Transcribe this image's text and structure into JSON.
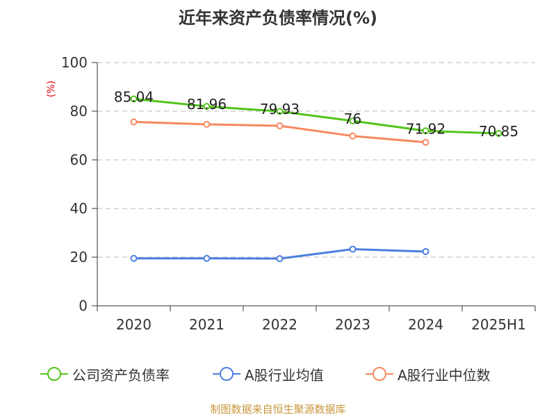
{
  "chart_data": {
    "type": "line",
    "title": "近年来资产负债率情况(%)",
    "unit_label": "(%)",
    "categories": [
      "2020",
      "2021",
      "2022",
      "2023",
      "2024",
      "2025H1"
    ],
    "ylim": [
      0,
      100
    ],
    "yticks": [
      "0",
      "20",
      "40",
      "60",
      "80",
      "100"
    ],
    "grid": true,
    "legend_position": "bottom",
    "series": [
      {
        "name": "公司资产负债率",
        "color": "#52c41a",
        "values": [
          85.04,
          81.96,
          79.93,
          76,
          71.92,
          70.85
        ],
        "labels": [
          "85.04",
          "81.96",
          "79.93",
          "76",
          "71.92",
          "70.85"
        ]
      },
      {
        "name": "A股行业均值",
        "color": "#4a7fe0",
        "values": [
          19.5,
          19.5,
          19.4,
          23.3,
          22.3,
          null
        ]
      },
      {
        "name": "A股行业中位数",
        "color": "#f5895f",
        "values": [
          75.6,
          74.6,
          74.0,
          69.8,
          67.2,
          null
        ]
      }
    ],
    "source": "制图数据来自恒生聚源数据库"
  }
}
